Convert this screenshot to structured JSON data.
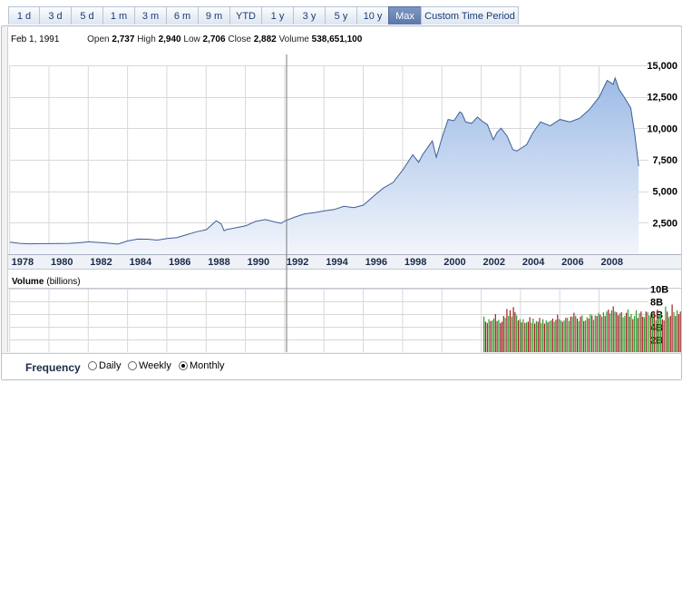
{
  "tabs": [
    {
      "label": "1 d"
    },
    {
      "label": "3 d"
    },
    {
      "label": "5 d"
    },
    {
      "label": "1 m"
    },
    {
      "label": "3 m"
    },
    {
      "label": "6 m"
    },
    {
      "label": "9 m"
    },
    {
      "label": "YTD"
    },
    {
      "label": "1 y"
    },
    {
      "label": "3 y"
    },
    {
      "label": "5 y"
    },
    {
      "label": "10 y"
    },
    {
      "label": "Max",
      "active": true
    },
    {
      "label": "Custom Time Period"
    }
  ],
  "quote": {
    "date": "Feb 1, 1991",
    "open_label": "Open",
    "open": "2,737",
    "high_label": "High",
    "high": "2,940",
    "low_label": "Low",
    "low": "2,706",
    "close_label": "Close",
    "close": "2,882",
    "volume_label": "Volume",
    "volume": "538,651,100"
  },
  "volume_panel": {
    "title": "Volume",
    "unit": "(billions)"
  },
  "frequency": {
    "label": "Frequency",
    "options": [
      {
        "label": "Daily",
        "selected": false
      },
      {
        "label": "Weekly",
        "selected": false
      },
      {
        "label": "Monthly",
        "selected": true
      }
    ]
  },
  "colors": {
    "price_line": "#3f5f94",
    "area_top": "#9dbbe6",
    "area_bottom": "#f2f5fb",
    "volume_up": "#2f9e2f",
    "volume_down": "#9e1f1f",
    "grid": "#d8d8d8",
    "cursor": "#7a7a7a"
  },
  "chart_data": [
    {
      "type": "area",
      "x_ticks": [
        "1978",
        "1980",
        "1982",
        "1984",
        "1986",
        "1988",
        "1990",
        "1992",
        "1994",
        "1996",
        "1998",
        "2000",
        "2002",
        "2004",
        "2006",
        "2008"
      ],
      "y_ticks": [
        "2,500",
        "5,000",
        "7,500",
        "10,000",
        "12,500",
        "15,000"
      ],
      "xlim": [
        1977.0,
        2009.5
      ],
      "ylim": [
        0,
        15000
      ],
      "grid": true,
      "series": [
        {
          "x": [
            1977.0,
            1977.5,
            1978.0,
            1978.5,
            1979.0,
            1979.5,
            1980.0,
            1980.5,
            1981.0,
            1981.5,
            1982.0,
            1982.5,
            1983.0,
            1983.5,
            1984.0,
            1984.5,
            1985.0,
            1985.5,
            1986.0,
            1986.5,
            1987.0,
            1987.5,
            1987.75,
            1987.9,
            1988.0,
            1988.5,
            1989.0,
            1989.5,
            1990.0,
            1990.5,
            1990.8,
            1991.0,
            1991.5,
            1992.0,
            1992.5,
            1993.0,
            1993.5,
            1994.0,
            1994.5,
            1995.0,
            1995.5,
            1996.0,
            1996.5,
            1997.0,
            1997.5,
            1997.8,
            1998.0,
            1998.5,
            1998.7,
            1999.0,
            1999.3,
            1999.6,
            1999.9,
            2000.0,
            2000.2,
            2000.5,
            2000.8,
            2001.0,
            2001.3,
            2001.6,
            2001.8,
            2002.0,
            2002.3,
            2002.6,
            2002.8,
            2003.0,
            2003.3,
            2003.6,
            2004.0,
            2004.5,
            2005.0,
            2005.5,
            2006.0,
            2006.5,
            2007.0,
            2007.4,
            2007.7,
            2007.8,
            2008.0,
            2008.3,
            2008.6,
            2008.8,
            2009.0
          ],
          "values": [
            950,
            860,
            820,
            840,
            840,
            850,
            860,
            900,
            980,
            930,
            870,
            800,
            1050,
            1200,
            1190,
            1120,
            1250,
            1320,
            1550,
            1780,
            1950,
            2650,
            2400,
            1850,
            1950,
            2100,
            2250,
            2600,
            2750,
            2550,
            2450,
            2650,
            2950,
            3200,
            3300,
            3450,
            3550,
            3800,
            3700,
            3900,
            4600,
            5250,
            5700,
            6700,
            7900,
            7300,
            7900,
            9000,
            7700,
            9300,
            10700,
            10600,
            11300,
            11200,
            10500,
            10400,
            10900,
            10600,
            10300,
            9100,
            9700,
            10000,
            9400,
            8300,
            8200,
            8400,
            8700,
            9600,
            10500,
            10200,
            10700,
            10500,
            10800,
            11500,
            12500,
            13800,
            13500,
            14000,
            13100,
            12400,
            11600,
            9600,
            7000
          ]
        }
      ]
    },
    {
      "type": "bar",
      "title": "Volume",
      "ylabel": "(billions)",
      "y_ticks": [
        "2B",
        "4B",
        "6B",
        "8B",
        "10B"
      ],
      "ylim": [
        0,
        10
      ],
      "series": [
        {
          "x_start": 2001.1,
          "x_step": 0.0833,
          "values": [
            5.6,
            4.8,
            4.6,
            5.2,
            4.9,
            5.0,
            5.3,
            6.0,
            4.9,
            5.1,
            4.6,
            4.8,
            5.7,
            5.4,
            6.8,
            5.7,
            6.6,
            5.6,
            7.1,
            6.3,
            5.8,
            5.0,
            5.2,
            4.7,
            5.2,
            4.6,
            4.7,
            4.8,
            5.5,
            4.6,
            5.3,
            4.5,
            4.9,
            4.8,
            5.4,
            4.6,
            5.2,
            4.5,
            5.0,
            4.7,
            4.9,
            5.0,
            5.3,
            4.8,
            5.1,
            5.9,
            5.2,
            5.0,
            4.8,
            5.0,
            5.4,
            5.4,
            4.9,
            5.6,
            5.6,
            6.2,
            5.7,
            5.3,
            4.9,
            5.6,
            5.8,
            4.9,
            5.0,
            5.5,
            5.3,
            6.0,
            5.8,
            5.1,
            5.8,
            5.7,
            6.2,
            5.9,
            5.6,
            6.3,
            5.7,
            6.4,
            6.7,
            6.1,
            6.6,
            7.2,
            6.4,
            6.3,
            5.8,
            6.1,
            6.3,
            5.5,
            5.7,
            6.2,
            6.7,
            5.6,
            6.0,
            5.2,
            5.7,
            6.6,
            5.4,
            6.1,
            6.4,
            5.6,
            5.5,
            6.4,
            6.3,
            5.8,
            5.6,
            6.1,
            6.3,
            5.1,
            6.7,
            5.8,
            6.1,
            5.2,
            5.0,
            7.2,
            6.4,
            5.5,
            5.7,
            7.5,
            6.3,
            5.7,
            6.6,
            6.0,
            6.4,
            7.2,
            5.9,
            6.8,
            5.9,
            6.9,
            7.6,
            6.1,
            5.7,
            7.1,
            7.3
          ],
          "down": [
            0,
            1,
            1,
            0,
            1,
            0,
            0,
            1,
            1,
            0,
            1,
            1,
            1,
            0,
            1,
            0,
            1,
            0,
            1,
            1,
            0,
            1,
            0,
            1,
            0,
            1,
            0,
            1,
            1,
            0,
            0,
            1,
            0,
            1,
            1,
            0,
            0,
            1,
            0,
            1,
            0,
            0,
            1,
            0,
            1,
            1,
            0,
            0,
            1,
            0,
            1,
            0,
            0,
            1,
            0,
            1,
            0,
            1,
            0,
            1,
            0,
            1,
            0,
            0,
            1,
            0,
            1,
            0,
            0,
            1,
            0,
            1,
            0,
            0,
            1,
            0,
            1,
            0,
            0,
            1,
            0,
            1,
            1,
            0,
            1,
            0,
            0,
            1,
            0,
            1,
            0,
            1,
            0,
            0,
            1,
            0,
            1,
            1,
            0,
            1,
            0,
            0,
            1,
            0,
            1,
            0,
            1,
            0,
            0,
            1,
            1,
            0,
            1,
            0,
            1,
            1,
            0,
            1,
            0,
            1,
            1,
            0,
            1,
            0,
            1,
            1,
            0,
            1,
            1,
            0,
            1
          ]
        }
      ]
    }
  ]
}
